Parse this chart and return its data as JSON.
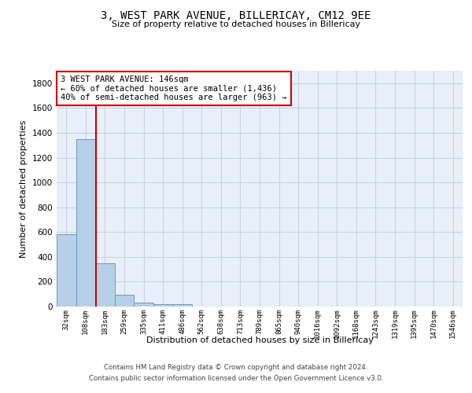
{
  "title": "3, WEST PARK AVENUE, BILLERICAY, CM12 9EE",
  "subtitle": "Size of property relative to detached houses in Billericay",
  "xlabel": "Distribution of detached houses by size in Billericay",
  "ylabel": "Number of detached properties",
  "footer_line1": "Contains HM Land Registry data © Crown copyright and database right 2024.",
  "footer_line2": "Contains public sector information licensed under the Open Government Licence v3.0.",
  "categories": [
    "32sqm",
    "108sqm",
    "183sqm",
    "259sqm",
    "335sqm",
    "411sqm",
    "486sqm",
    "562sqm",
    "638sqm",
    "713sqm",
    "789sqm",
    "865sqm",
    "940sqm",
    "1016sqm",
    "1092sqm",
    "1168sqm",
    "1243sqm",
    "1319sqm",
    "1395sqm",
    "1470sqm",
    "1546sqm"
  ],
  "bar_values": [
    580,
    1350,
    350,
    95,
    30,
    20,
    20,
    0,
    0,
    0,
    0,
    0,
    0,
    0,
    0,
    0,
    0,
    0,
    0,
    0,
    0
  ],
  "bar_color": "#b8cfe8",
  "bar_edge_color": "#6699cc",
  "grid_color": "#c8d4e3",
  "background_color": "#e8eff8",
  "annotation_box_text": "3 WEST PARK AVENUE: 146sqm\n← 60% of detached houses are smaller (1,436)\n40% of semi-detached houses are larger (963) →",
  "annotation_box_color": "#cc0000",
  "vline_x_index": 1.52,
  "vline_color": "#cc0000",
  "ylim": [
    0,
    1900
  ],
  "yticks": [
    0,
    200,
    400,
    600,
    800,
    1000,
    1200,
    1400,
    1600,
    1800
  ]
}
